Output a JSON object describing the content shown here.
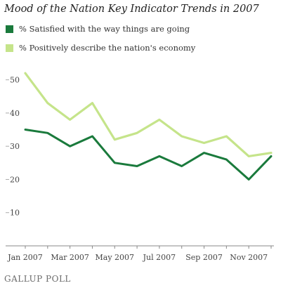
{
  "chart_data": {
    "type": "line",
    "title": "Mood of the Nation Key Indicator Trends in 2007",
    "xlabel": "",
    "ylabel": "",
    "x": [
      "Jan 2007",
      "Feb 2007",
      "Mar 2007",
      "Apr 2007",
      "May 2007",
      "Jun 2007",
      "Jul 2007",
      "Aug 2007",
      "Sep 2007",
      "Oct 2007",
      "Nov 2007",
      "Dec 2007"
    ],
    "x_ticks": [
      "Jan 2007",
      "Mar 2007",
      "May 2007",
      "Jul 2007",
      "Sep 2007",
      "Nov 2007"
    ],
    "y_ticks": [
      0,
      10,
      20,
      30,
      40,
      50
    ],
    "ylim": [
      0,
      55
    ],
    "grid": false,
    "legend_position": "top-left",
    "series": [
      {
        "name": "% Satisfied with the way things are going",
        "color": "#1a7a3c",
        "values": [
          35,
          34,
          30,
          33,
          25,
          24,
          27,
          24,
          28,
          26,
          20,
          27
        ]
      },
      {
        "name": "% Positively describe the nation's economy",
        "color": "#c5e48a",
        "values": [
          52,
          43,
          38,
          43,
          32,
          34,
          38,
          33,
          31,
          33,
          27,
          28
        ]
      }
    ]
  },
  "source": "GALLUP POLL"
}
